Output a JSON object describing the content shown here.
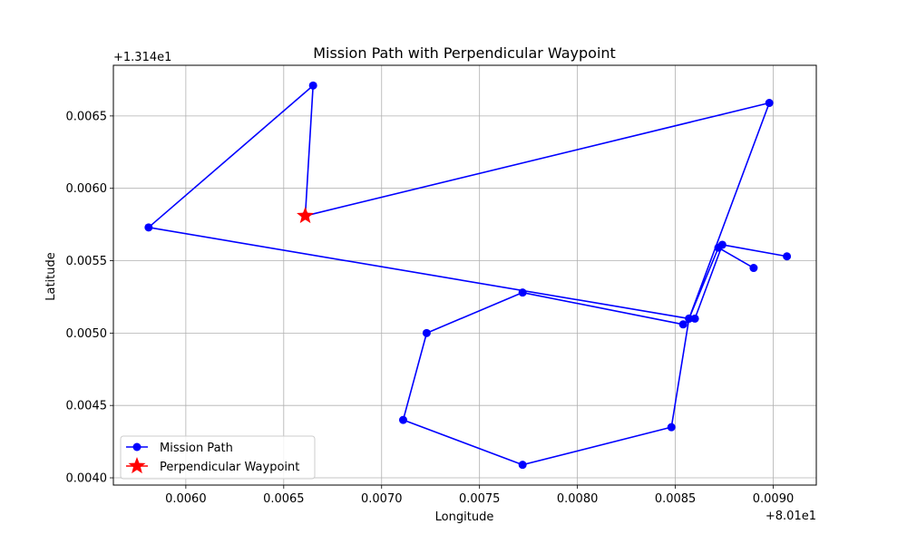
{
  "chart_data": {
    "type": "line",
    "title": "Mission Path with Perpendicular Waypoint",
    "xlabel": "Longitude",
    "ylabel": "Latitude",
    "x_offset_label": "+8.01e1",
    "y_offset_label": "+1.314e1",
    "xlim": [
      0.00563,
      0.00922
    ],
    "ylim": [
      0.00395,
      0.00685
    ],
    "x_ticks": [
      0.006,
      0.0065,
      0.007,
      0.0075,
      0.008,
      0.0085,
      0.009
    ],
    "x_tick_labels": [
      "0.0060",
      "0.0065",
      "0.0070",
      "0.0075",
      "0.0080",
      "0.0085",
      "0.0090"
    ],
    "y_ticks": [
      0.004,
      0.0045,
      0.005,
      0.0055,
      0.006,
      0.0065
    ],
    "y_tick_labels": [
      "0.0040",
      "0.0045",
      "0.0050",
      "0.0055",
      "0.0060",
      "0.0065"
    ],
    "grid": true,
    "legend_position": "lower-left",
    "colors": {
      "path": "#0000ff",
      "waypoint": "#ff0000",
      "grid": "#b0b0b0"
    },
    "series": [
      {
        "name": "Mission Path",
        "marker": "circle",
        "points": [
          [
            0.00907,
            0.00553
          ],
          [
            0.00874,
            0.00561
          ],
          [
            0.0086,
            0.0051
          ],
          [
            0.00854,
            0.00506
          ],
          [
            0.00772,
            0.00528
          ],
          [
            0.00723,
            0.005
          ],
          [
            0.00711,
            0.0044
          ],
          [
            0.00772,
            0.00409
          ],
          [
            0.00848,
            0.00435
          ],
          [
            0.00857,
            0.0051
          ],
          [
            0.00581,
            0.00573
          ],
          [
            0.00665,
            0.00671
          ],
          [
            0.00661,
            0.00581
          ],
          [
            0.00898,
            0.00659
          ],
          [
            0.00857,
            0.0051
          ],
          [
            0.00872,
            0.00559
          ],
          [
            0.0089,
            0.00545
          ]
        ]
      },
      {
        "name": "Perpendicular Waypoint",
        "marker": "star",
        "points": [
          [
            0.00661,
            0.00581
          ]
        ]
      }
    ]
  }
}
